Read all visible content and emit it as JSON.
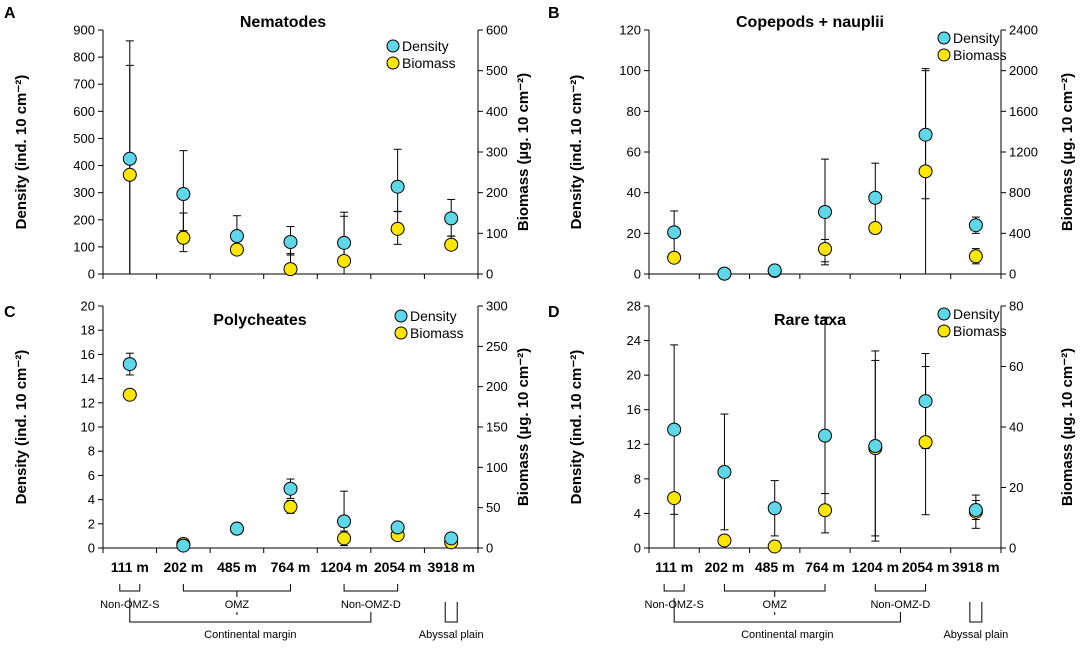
{
  "colors": {
    "density": "#5ed8e8",
    "biomass": "#ffe600",
    "stroke": "#000000"
  },
  "categories": [
    "111 m",
    "202 m",
    "485 m",
    "764 m",
    "1204 m",
    "2054 m",
    "3918 m"
  ],
  "zones": {
    "non_omz_s": "Non-OMZ-S",
    "omz": "OMZ",
    "non_omz_d": "Non-OMZ-D",
    "continental_margin": "Continental margin",
    "abyssal_plain": "Abyssal plain"
  },
  "chart_data": [
    {
      "id": "A",
      "panel_letter": "A",
      "type": "scatter",
      "title": "Nematodes",
      "ylabel": "Density (ind. 10 cm⁻²)",
      "y2label": "Biomass (µg. 10 cm⁻²)",
      "ylim": [
        0,
        900
      ],
      "y2lim": [
        0,
        600
      ],
      "yticks": [
        "0",
        "100",
        "200",
        "300",
        "400",
        "500",
        "600",
        "700",
        "800",
        "900"
      ],
      "y2ticks": [
        "0",
        "100",
        "200",
        "300",
        "400",
        "500",
        "600"
      ],
      "legend": [
        "Density",
        "Biomass"
      ],
      "series": [
        {
          "name": "Density",
          "axis": "left",
          "values": [
            425,
            295,
            140,
            118,
            115,
            322,
            205
          ],
          "err_hi": [
            860,
            455,
            215,
            175,
            228,
            460,
            275
          ],
          "err_lo": [
            0,
            160,
            90,
            70,
            30,
            230,
            140
          ]
        },
        {
          "name": "Biomass",
          "axis": "right",
          "values": [
            244,
            89,
            60,
            12,
            32,
            111,
            72
          ],
          "err_hi": [
            513,
            150,
            60,
            50,
            142,
            154,
            93
          ],
          "err_lo": [
            0,
            55,
            55,
            0,
            0,
            73,
            62
          ]
        }
      ]
    },
    {
      "id": "B",
      "panel_letter": "B",
      "type": "scatter",
      "title": "Copepods + nauplii",
      "ylabel": "Density (ind. 10 cm⁻²)",
      "y2label": "Biomass (µg. 10 cm⁻²)",
      "ylim": [
        0,
        120
      ],
      "y2lim": [
        0,
        2400
      ],
      "yticks": [
        "0",
        "20",
        "40",
        "60",
        "80",
        "100",
        "120"
      ],
      "y2ticks": [
        "0",
        "400",
        "800",
        "1200",
        "1600",
        "2000",
        "2400"
      ],
      "legend": [
        "Density",
        "Biomass"
      ],
      "series": [
        {
          "name": "Density",
          "axis": "left",
          "values": [
            20.5,
            0.2,
            1.8,
            30.5,
            37.5,
            68.5,
            24
          ],
          "err_hi": [
            31,
            0.5,
            2.5,
            56.5,
            54.5,
            101,
            28
          ],
          "err_lo": [
            10,
            0,
            1,
            6,
            20,
            0,
            20
          ]
        },
        {
          "name": "Biomass",
          "axis": "right",
          "values": [
            160,
            3,
            30,
            246,
            452,
            1010,
            174
          ],
          "err_hi": [
            160,
            5,
            40,
            340,
            452,
            2000,
            250
          ],
          "err_lo": [
            160,
            0,
            10,
            90,
            452,
            740,
            100
          ]
        }
      ]
    },
    {
      "id": "C",
      "panel_letter": "C",
      "type": "scatter",
      "title": "Polycheates",
      "ylabel": "Density (ind. 10 cm⁻²)",
      "y2label": "Biomass (µg. 10 cm⁻²)",
      "ylim": [
        0,
        20
      ],
      "y2lim": [
        0,
        300
      ],
      "yticks": [
        "0",
        "2",
        "4",
        "6",
        "8",
        "10",
        "12",
        "14",
        "16",
        "18",
        "20"
      ],
      "y2ticks": [
        "0",
        "50",
        "100",
        "150",
        "200",
        "250",
        "300"
      ],
      "legend": [
        "Density",
        "Biomass"
      ],
      "series": [
        {
          "name": "Density",
          "axis": "left",
          "values": [
            15.2,
            0.2,
            1.6,
            4.9,
            2.2,
            1.7,
            0.8
          ],
          "err_hi": [
            16.1,
            0.3,
            1.6,
            5.7,
            4.7,
            1.8,
            1.0
          ],
          "err_lo": [
            14.3,
            0.1,
            1.6,
            4.1,
            0.2,
            1.6,
            0.6
          ]
        },
        {
          "name": "Biomass",
          "axis": "right",
          "values": [
            190,
            5,
            24,
            51,
            12,
            16,
            7
          ],
          "err_hi": [
            190,
            8,
            24,
            59,
            21,
            18,
            10
          ],
          "err_lo": [
            190,
            2,
            24,
            43,
            3,
            14,
            4
          ]
        }
      ]
    },
    {
      "id": "D",
      "panel_letter": "D",
      "type": "scatter",
      "title": "Rare taxa",
      "ylabel": "Density (ind. 10 cm⁻²)",
      "y2label": "Biomass (µg. 10 cm⁻²)",
      "ylim": [
        0,
        28
      ],
      "y2lim": [
        0,
        80
      ],
      "yticks": [
        "0",
        "4",
        "8",
        "12",
        "16",
        "20",
        "24",
        "28"
      ],
      "y2ticks": [
        "0",
        "20",
        "40",
        "60",
        "80"
      ],
      "legend": [
        "Density",
        "Biomass"
      ],
      "series": [
        {
          "name": "Density",
          "axis": "left",
          "values": [
            13.7,
            8.8,
            4.6,
            13.0,
            11.8,
            17.0,
            4.4
          ],
          "err_hi": [
            23.5,
            15.5,
            7.8,
            26.7,
            22.8,
            22.5,
            5.5
          ],
          "err_lo": [
            3.9,
            2.1,
            1.4,
            6.3,
            0.8,
            11.5,
            3.3
          ]
        },
        {
          "name": "Biomass",
          "axis": "right",
          "values": [
            16.5,
            2.5,
            0.5,
            12.5,
            33,
            35,
            12
          ],
          "err_hi": [
            16.5,
            4,
            1,
            76,
            62,
            60,
            17.5
          ],
          "err_lo": [
            0,
            1,
            0,
            5,
            4,
            11,
            6.5
          ]
        }
      ]
    }
  ]
}
